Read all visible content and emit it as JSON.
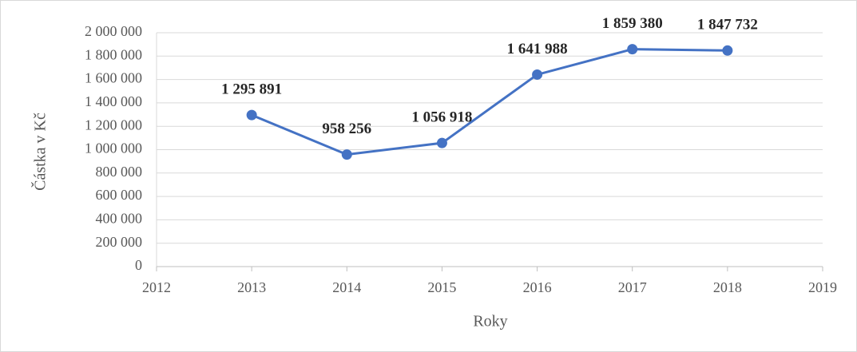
{
  "chart_data": {
    "type": "line",
    "x_label": "Roky",
    "y_label": "Částka v Kč",
    "x": [
      2013,
      2014,
      2015,
      2016,
      2017,
      2018
    ],
    "series": [
      {
        "name": "Částka v Kč",
        "color": "#4472c4",
        "values": [
          1295891,
          958256,
          1056918,
          1641988,
          1859380,
          1847732
        ],
        "value_labels": [
          "1 295 891",
          "958 256",
          "1 056 918",
          "1 641 988",
          "1 859 380",
          "1 847 732"
        ]
      }
    ],
    "xlim": [
      2012,
      2019
    ],
    "xticks": [
      2012,
      2013,
      2014,
      2015,
      2016,
      2017,
      2018,
      2019
    ],
    "ylim": [
      0,
      2000000
    ],
    "yticks": [
      0,
      {
        "value": 200000,
        "label": "200 000"
      },
      {
        "value": 400000,
        "label": "400 000"
      },
      {
        "value": 600000,
        "label": "600 000"
      },
      {
        "value": 800000,
        "label": "800 000"
      },
      {
        "value": 1000000,
        "label": "1 000 000"
      },
      {
        "value": 1200000,
        "label": "1 200 000"
      },
      {
        "value": 1400000,
        "label": "1 400 000"
      },
      {
        "value": 1600000,
        "label": "1 600 000"
      },
      {
        "value": 1800000,
        "label": "1 800 000"
      },
      {
        "value": 2000000,
        "label": "2 000 000"
      }
    ],
    "grid": true
  }
}
